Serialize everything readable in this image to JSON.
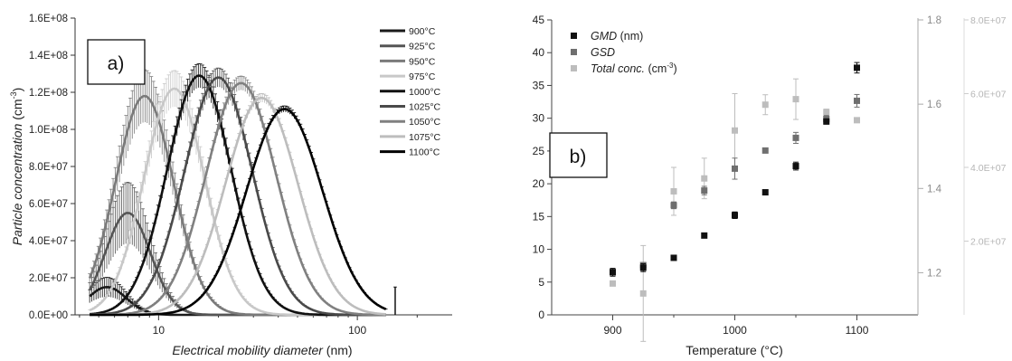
{
  "chart_data": [
    {
      "type": "line",
      "panel_label": "a)",
      "title": "",
      "xlabel_italic": "Electrical mobility diameter",
      "xlabel_unit": " (nm)",
      "ylabel_italic": "Particle concentration",
      "ylabel_unit": " (cm",
      "ylabel_unit_sup": "-3",
      "ylabel_unit_close": ")",
      "xscale": "log",
      "xlim": [
        3.8,
        300
      ],
      "ylim": [
        0,
        160000000
      ],
      "xticks": [
        10,
        100
      ],
      "xtick_labels": [
        "10",
        "100"
      ],
      "yticks": [
        0,
        20000000,
        40000000,
        60000000,
        80000000,
        100000000,
        120000000,
        140000000,
        160000000
      ],
      "ytick_labels": [
        "0.0E+00",
        "2.0E+07",
        "4.0E+07",
        "6.0E+07",
        "8.0E+07",
        "1.0E+08",
        "1.2E+08",
        "1.4E+08",
        "1.6E+08"
      ],
      "legend_position": "top-right",
      "error_bars": true,
      "series": [
        {
          "name": "900°C",
          "color": "#1a1a1a",
          "peak_x": 5.5,
          "peak_y": 15000000,
          "sigma": 1.25,
          "error": 0.35
        },
        {
          "name": "925°C",
          "color": "#555555",
          "peak_x": 7.0,
          "peak_y": 55000000,
          "sigma": 1.3,
          "error": 0.3
        },
        {
          "name": "950°C",
          "color": "#7a7a7a",
          "peak_x": 8.5,
          "peak_y": 118000000,
          "sigma": 1.4,
          "error": 0.12
        },
        {
          "name": "975°C",
          "color": "#c8c8c8",
          "peak_x": 12.0,
          "peak_y": 122000000,
          "sigma": 1.42,
          "error": 0.08
        },
        {
          "name": "1000°C",
          "color": "#111111",
          "peak_x": 16.0,
          "peak_y": 129000000,
          "sigma": 1.45,
          "error": 0.05
        },
        {
          "name": "1025°C",
          "color": "#4a4a4a",
          "peak_x": 20.0,
          "peak_y": 128000000,
          "sigma": 1.48,
          "error": 0.04
        },
        {
          "name": "1050°C",
          "color": "#808080",
          "peak_x": 26.0,
          "peak_y": 125000000,
          "sigma": 1.5,
          "error": 0.03
        },
        {
          "name": "1075°C",
          "color": "#bdbdbd",
          "peak_x": 33.0,
          "peak_y": 117000000,
          "sigma": 1.52,
          "error": 0.02
        },
        {
          "name": "1100°C",
          "color": "#000000",
          "peak_x": 43.0,
          "peak_y": 111000000,
          "sigma": 1.55,
          "error": 0.015
        }
      ]
    },
    {
      "type": "scatter",
      "panel_label": "b)",
      "title": "",
      "xlabel": "Temperature (°C)",
      "xlim": [
        850,
        1150
      ],
      "xticks": [
        900,
        1000,
        1100
      ],
      "ylim_left": [
        0,
        45
      ],
      "yticks_left": [
        0,
        5,
        10,
        15,
        20,
        25,
        30,
        35,
        40,
        45
      ],
      "ylim_right1": [
        1.1,
        1.8
      ],
      "yticks_right1": [
        1.2,
        1.4,
        1.6,
        1.8
      ],
      "ylim_right2": [
        0,
        80000000
      ],
      "yticks_right2": [
        20000000,
        40000000,
        60000000,
        80000000
      ],
      "ytick_labels_right2": [
        "2.0E+07",
        "4.0E+07",
        "6.0E+07",
        "8.0E+07"
      ],
      "legend_position": "top-left",
      "series": [
        {
          "name": "GMD",
          "name_unit": " (nm)",
          "unit_sup": "",
          "unit_close": "",
          "axis": "left",
          "color": "#111111",
          "x": [
            900,
            925,
            950,
            975,
            1000,
            1025,
            1050,
            1075,
            1100
          ],
          "y": [
            6.5,
            7.2,
            8.7,
            12.1,
            15.2,
            18.7,
            22.7,
            29.5,
            37.7
          ],
          "err": [
            0.6,
            0.6,
            0.3,
            0.3,
            0.5,
            0.3,
            0.6,
            0.4,
            0.8
          ]
        },
        {
          "name": "GSD",
          "name_unit": "",
          "unit_sup": "",
          "unit_close": "",
          "axis": "right1",
          "color": "#6f6f6f",
          "x": [
            900,
            925,
            950,
            975,
            1000,
            1025,
            1050,
            1075,
            1100
          ],
          "y": [
            1.202,
            1.218,
            1.36,
            1.395,
            1.447,
            1.49,
            1.52,
            1.565,
            1.608
          ],
          "err": [
            0.005,
            0.005,
            0.008,
            0.01,
            0.025,
            0.005,
            0.013,
            0.008,
            0.015
          ]
        },
        {
          "name": "Total conc.",
          "name_unit": " (cm",
          "unit_sup": "-3",
          "unit_close": ")",
          "axis": "right2",
          "color": "#bdbdbd",
          "x": [
            900,
            925,
            950,
            975,
            1000,
            1025,
            1050,
            1075,
            1100
          ],
          "y": [
            8500000,
            5800000,
            33500000,
            37000000,
            50000000,
            57000000,
            58500000,
            55000000,
            52800000
          ],
          "err": [
            400000,
            13000000,
            6500000,
            5500000,
            10000000,
            2700000,
            5500000,
            800000,
            400000
          ]
        }
      ]
    }
  ]
}
